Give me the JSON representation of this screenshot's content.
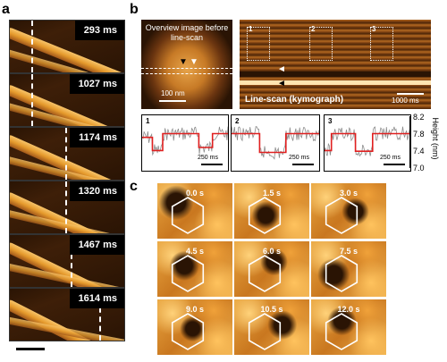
{
  "panel_a": {
    "letter": "a",
    "frames": [
      {
        "label": "293 ms"
      },
      {
        "label": "1027 ms"
      },
      {
        "label": "1174 ms"
      },
      {
        "label": "1320 ms"
      },
      {
        "label": "1467 ms"
      },
      {
        "label": "1614 ms"
      }
    ]
  },
  "panel_b": {
    "letter": "b",
    "overview_title": "Overview image before line-scan",
    "overview_scale": "100 nm",
    "kymo_title": "Line-scan (kymograph)",
    "kymo_scale": "1000 ms",
    "box_numbers": [
      "1",
      "2",
      "3"
    ],
    "traces": [
      {
        "num": "1",
        "scale": "250 ms"
      },
      {
        "num": "2",
        "scale": "250 ms"
      },
      {
        "num": "3",
        "scale": "250 ms"
      }
    ],
    "yaxis_label": "Height (nm)",
    "yticks": [
      "8.2",
      "7.8",
      "7.4",
      "7.0"
    ]
  },
  "panel_c": {
    "letter": "c",
    "times": [
      "0.0 s",
      "1.5 s",
      "3.0 s",
      "4.5 s",
      "6.0 s",
      "7.5 s",
      "9.0 s",
      "10.5 s",
      "12.0 s"
    ]
  },
  "colors": {
    "afm_dark": "#3b1e0a",
    "afm_bright": "#f7c46a",
    "trace_gray": "#8c8c8c",
    "trace_fit": "#e02020"
  }
}
